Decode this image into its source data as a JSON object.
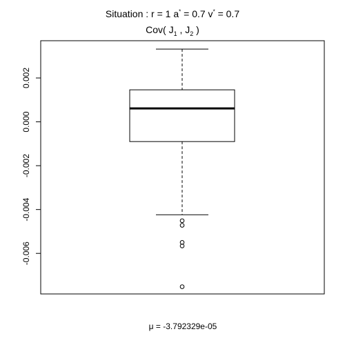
{
  "chart_data": {
    "type": "boxplot",
    "title": {
      "line1": {
        "prefix": "Situation :  r = 1 a",
        "sup1": "*",
        "mid": " = 0.7 v",
        "sup2": "*",
        "suffix": " = 0.7"
      },
      "line2": {
        "prefix": "Cov( J",
        "sub1": "1",
        "mid": " , J",
        "sub2": "2",
        "suffix": " )"
      }
    },
    "xlabel": "μ = -3.792329e-05",
    "ylabel": "",
    "yticks": [
      -0.006,
      -0.004,
      -0.002,
      0.0,
      0.002
    ],
    "ytick_labels": [
      "-0.006",
      "-0.004",
      "-0.002",
      "0.000",
      "0.002"
    ],
    "ylim": [
      -0.00785,
      0.0037
    ],
    "box": {
      "whisker_low": -0.00424,
      "q1": -0.0009,
      "median": 0.00061,
      "q3": 0.00146,
      "whisker_high": 0.00332
    },
    "outliers": [
      -0.00451,
      -0.00472,
      -0.0055,
      -0.00566,
      -0.00752
    ],
    "grid": false,
    "legend": "none"
  }
}
